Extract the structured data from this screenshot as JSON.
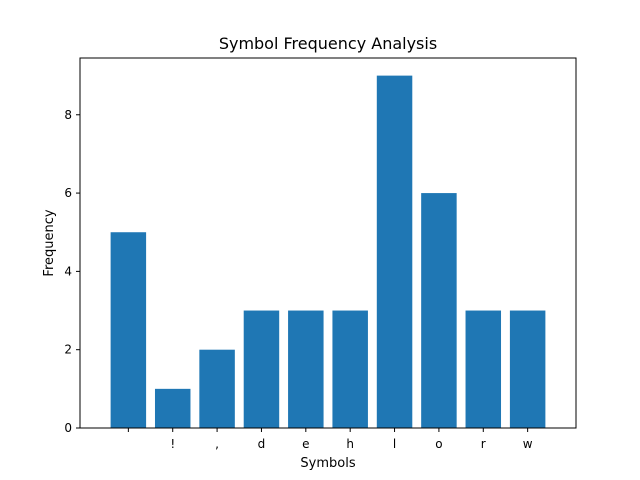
{
  "chart_data": {
    "type": "bar",
    "title": "Symbol Frequency Analysis",
    "xlabel": "Symbols",
    "ylabel": "Frequency",
    "categories": [
      " ",
      "!",
      ",",
      "d",
      "e",
      "h",
      "l",
      "o",
      "r",
      "w"
    ],
    "values": [
      5,
      1,
      2,
      3,
      3,
      3,
      9,
      6,
      3,
      3
    ],
    "ylim": [
      0,
      9.45
    ],
    "yticks": [
      0,
      2,
      4,
      6,
      8
    ],
    "grid": false,
    "legend": "none",
    "bar_color": "#1f77b4"
  }
}
